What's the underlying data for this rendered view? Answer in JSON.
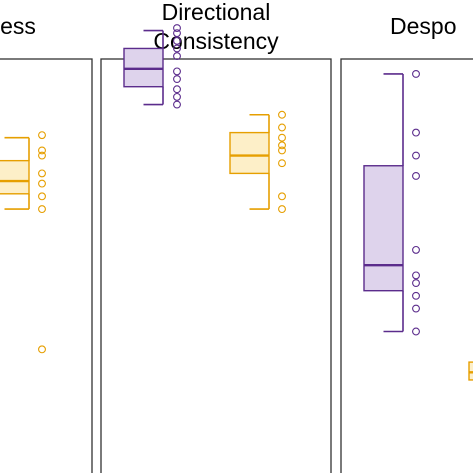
{
  "chart_data": [
    {
      "type": "box",
      "title_lines": [
        "ess"
      ],
      "ylim": [
        0,
        1
      ],
      "series": [
        {
          "name": "",
          "color": "#E69F00",
          "fill": "#FDEFC8",
          "whisker_low": 0.59,
          "q1": 0.62,
          "median": 0.645,
          "q3": 0.685,
          "whisker_high": 0.73,
          "points": [
            0.315,
            0.59,
            0.615,
            0.64,
            0.66,
            0.695,
            0.705,
            0.735
          ]
        }
      ]
    },
    {
      "type": "box",
      "title_lines": [
        "Directional",
        "Consistency"
      ],
      "ylim": [
        0,
        1
      ],
      "series": [
        {
          "name": "",
          "color": "#5B2C8C",
          "fill": "#DED3EC",
          "whisker_low": 0.795,
          "q1": 0.83,
          "median": 0.865,
          "q3": 0.905,
          "whisker_high": 0.94,
          "points": [
            0.795,
            0.81,
            0.825,
            0.845,
            0.86,
            0.89,
            0.905,
            0.92,
            0.935,
            0.945
          ]
        },
        {
          "name": "",
          "color": "#E69F00",
          "fill": "#FDEFC8",
          "whisker_low": 0.59,
          "q1": 0.66,
          "median": 0.695,
          "q3": 0.74,
          "whisker_high": 0.775,
          "points": [
            0.59,
            0.615,
            0.68,
            0.705,
            0.715,
            0.73,
            0.75,
            0.775
          ]
        }
      ]
    },
    {
      "type": "box",
      "title_lines": [
        "Despo"
      ],
      "ylim": [
        0,
        1
      ],
      "series": [
        {
          "name": "",
          "color": "#5B2C8C",
          "fill": "#DED3EC",
          "whisker_low": 0.35,
          "q1": 0.43,
          "median": 0.48,
          "q3": 0.675,
          "whisker_high": 0.855,
          "points": [
            0.35,
            0.395,
            0.42,
            0.445,
            0.46,
            0.51,
            0.655,
            0.695,
            0.74,
            0.855
          ]
        },
        {
          "name": "",
          "color": "#E69F00",
          "fill": "#FDEFC8",
          "whisker_low": 0.255,
          "q1": 0.255,
          "median": 0.27,
          "q3": 0.29,
          "whisker_high": 0.29,
          "points": []
        }
      ]
    }
  ]
}
